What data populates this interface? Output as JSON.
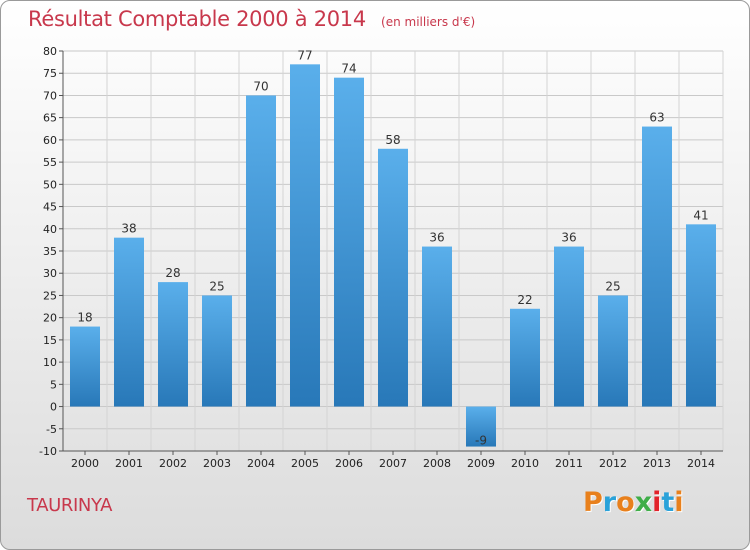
{
  "header": {
    "title": "Résultat Comptable 2000 à 2014",
    "subtitle": "(en milliers d'€)"
  },
  "footer": {
    "commune": "TAURINYA",
    "logo_text": "Proxiti"
  },
  "colors": {
    "title": "#c8384c",
    "bar_top": "#5aafeb",
    "bar_bottom": "#2878b8",
    "logo_letters": [
      "#e8801c",
      "#2aa2d9",
      "#e8801c",
      "#3fae49",
      "#e2222a",
      "#2aa2d9",
      "#e8801c"
    ]
  },
  "chart_data": {
    "type": "bar",
    "categories": [
      "2000",
      "2001",
      "2002",
      "2003",
      "2004",
      "2005",
      "2006",
      "2007",
      "2008",
      "2009",
      "2010",
      "2011",
      "2012",
      "2013",
      "2014"
    ],
    "values": [
      18,
      38,
      28,
      25,
      70,
      77,
      74,
      58,
      36,
      -9,
      22,
      36,
      25,
      63,
      41
    ],
    "data_labels": [
      "18",
      "38",
      "28",
      "25",
      "70",
      "77",
      "74",
      "58",
      "36",
      "-9",
      "22",
      "36",
      "25",
      "63",
      "41"
    ],
    "title": "Résultat Comptable 2000 à 2014",
    "xlabel": "",
    "ylabel": "",
    "ylim": [
      -10,
      80
    ],
    "yticks": [
      -10,
      -5,
      0,
      5,
      10,
      15,
      20,
      25,
      30,
      35,
      40,
      45,
      50,
      55,
      60,
      65,
      70,
      75,
      80
    ],
    "grid": true
  }
}
